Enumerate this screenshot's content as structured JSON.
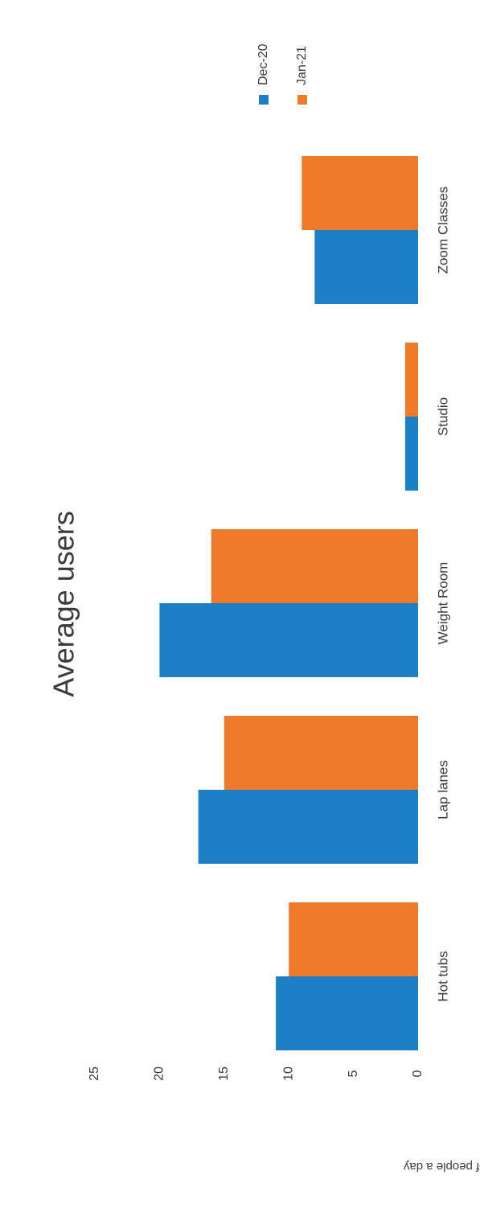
{
  "chart_data": {
    "type": "bar",
    "title": "Average users",
    "xlabel": "",
    "ylabel": "Number of people a day",
    "categories": [
      "Hot tubs",
      "Lap lanes",
      "Weight Room",
      "Studio",
      "Zoom Classes"
    ],
    "series": [
      {
        "name": "Dec-20",
        "color": "#1a7fc4",
        "values": [
          11,
          17,
          20,
          1,
          8
        ]
      },
      {
        "name": "Jan-21",
        "color": "#ef7b2a",
        "values": [
          10,
          15,
          16,
          1,
          9
        ]
      }
    ],
    "ylim": [
      0,
      25
    ],
    "yticks": [
      0,
      5,
      10,
      15,
      20,
      25
    ],
    "grid": false,
    "legend_position": "top-right",
    "orientation": "rotated 90° clockwise"
  }
}
